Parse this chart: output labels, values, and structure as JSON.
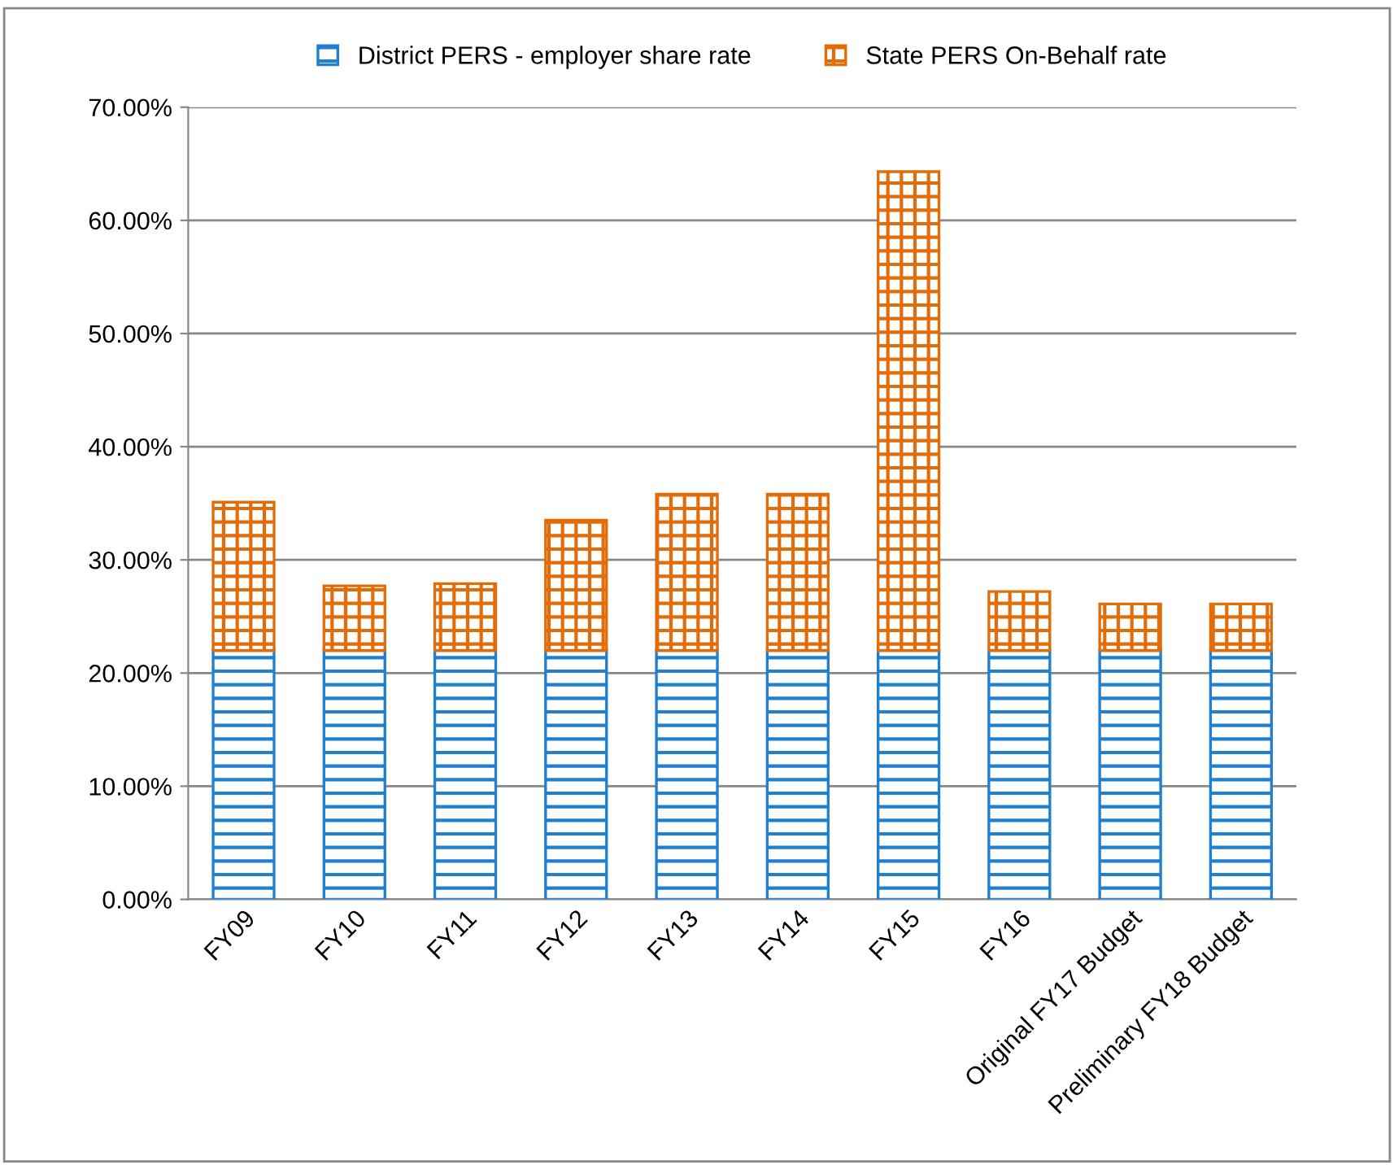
{
  "chart_data": {
    "type": "bar",
    "stacked": true,
    "categories": [
      "FY09",
      "FY10",
      "FY11",
      "FY12",
      "FY13",
      "FY14",
      "FY15",
      "FY16",
      "Original FY17 Budget",
      "Preliminary FY18 Budget"
    ],
    "series": [
      {
        "name": "District PERS - employer share rate",
        "color": "#1f7fd0",
        "values": [
          22.0,
          22.0,
          22.0,
          22.0,
          22.0,
          22.0,
          22.0,
          22.0,
          22.0,
          22.0
        ]
      },
      {
        "name": "State PERS On-Behalf rate",
        "color": "#e36c09",
        "values": [
          13.1,
          5.7,
          5.9,
          11.5,
          13.8,
          13.8,
          42.3,
          5.2,
          4.1,
          4.1
        ]
      }
    ],
    "ylim": [
      0,
      70
    ],
    "yticks": [
      {
        "value": 0,
        "label": "0.00%"
      },
      {
        "value": 10,
        "label": "10.00%"
      },
      {
        "value": 20,
        "label": "20.00%"
      },
      {
        "value": 30,
        "label": "30.00%"
      },
      {
        "value": 40,
        "label": "40.00%"
      },
      {
        "value": 50,
        "label": "50.00%"
      },
      {
        "value": 60,
        "label": "60.00%"
      },
      {
        "value": 70,
        "label": "70.00%"
      }
    ],
    "grid": "y",
    "legend": "top"
  }
}
